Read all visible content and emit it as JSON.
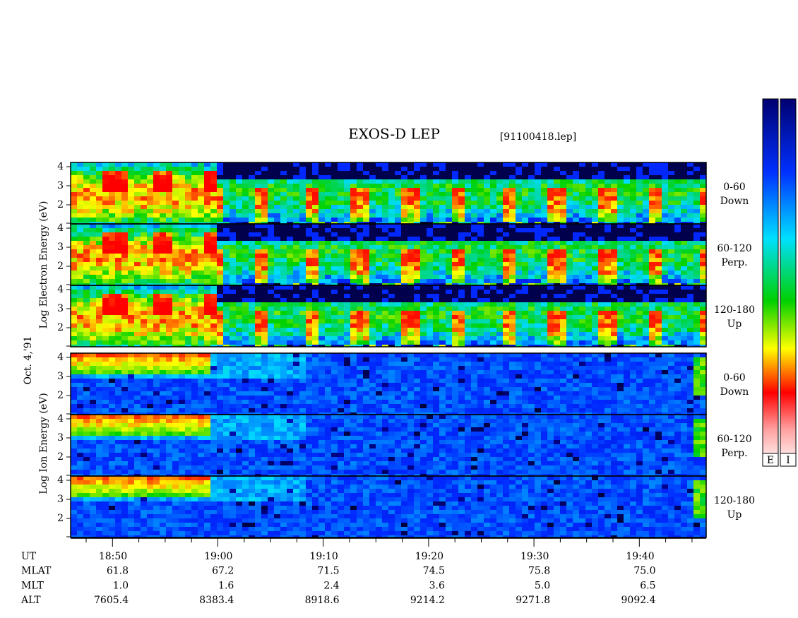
{
  "title": "EXOS-D LEP",
  "file": "[91100418.lep]",
  "date_label": "Oct. 4,'91",
  "groups": [
    {
      "axis_label": "Log Electron Energy (eV)",
      "panels": [
        {
          "angle": "0-60",
          "direction": "Down",
          "yticks": [
            4,
            3,
            2
          ]
        },
        {
          "angle": "60-120",
          "direction": "Perp.",
          "yticks": [
            4,
            3,
            2
          ]
        },
        {
          "angle": "120-180",
          "direction": "Up",
          "yticks": [
            4,
            3,
            2
          ]
        }
      ]
    },
    {
      "axis_label": "Log Ion Energy (eV)",
      "panels": [
        {
          "angle": "0-60",
          "direction": "Down",
          "yticks": [
            4,
            3,
            2
          ]
        },
        {
          "angle": "60-120",
          "direction": "Perp.",
          "yticks": [
            4,
            3,
            2
          ]
        },
        {
          "angle": "120-180",
          "direction": "Up",
          "yticks": [
            4,
            3,
            2
          ]
        }
      ]
    }
  ],
  "time_axis": [
    {
      "label": "UT",
      "values": [
        "18:50",
        "19:00",
        "19:10",
        "19:20",
        "19:30",
        "19:40"
      ]
    },
    {
      "label": "MLAT",
      "values": [
        "61.8",
        "67.2",
        "71.5",
        "74.5",
        "75.8",
        "75.0"
      ]
    },
    {
      "label": "MLT",
      "values": [
        "1.0",
        "1.6",
        "2.4",
        "3.6",
        "5.0",
        "6.5"
      ]
    },
    {
      "label": "ALT",
      "values": [
        "7605.4",
        "8383.4",
        "8918.6",
        "9214.2",
        "9271.8",
        "9092.4"
      ]
    }
  ],
  "colorbar_labels": [
    "E",
    "I"
  ]
}
